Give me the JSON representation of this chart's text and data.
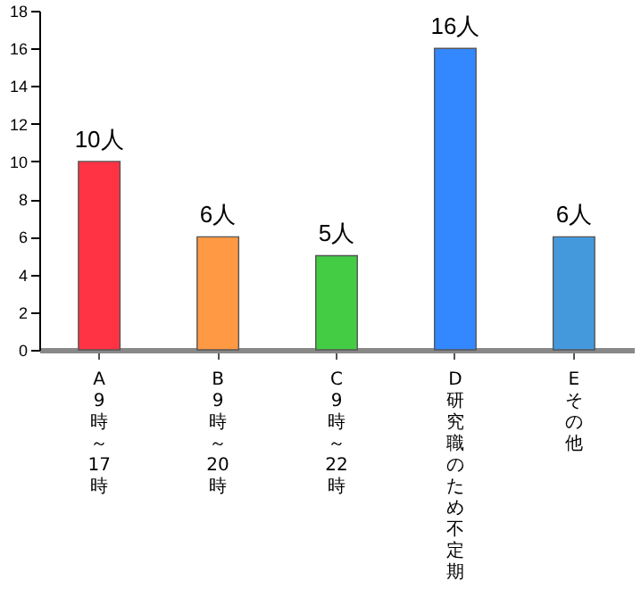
{
  "chart_data": {
    "type": "bar",
    "categories": [
      "A 9時～17時",
      "B 9時～20時",
      "C 9時～22時",
      "D 研究職のため不定期",
      "E その他"
    ],
    "values": [
      10,
      6,
      5,
      16,
      6
    ],
    "colors": [
      "#ff3344",
      "#ff9944",
      "#44cc44",
      "#3388ff",
      "#4499dd"
    ],
    "value_labels": [
      "10人",
      "6人",
      "5人",
      "16人",
      "6人"
    ],
    "ylim": [
      0,
      18
    ],
    "yticks": [
      0,
      2,
      4,
      6,
      8,
      10,
      12,
      14,
      16,
      18
    ],
    "grid": false
  }
}
